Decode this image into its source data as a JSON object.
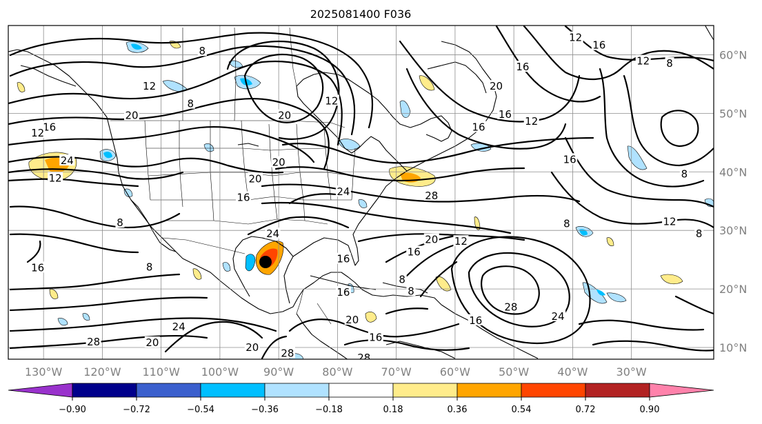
{
  "title": "2025081400 F036",
  "longitudes": [
    {
      "value": -130,
      "label": "130°W"
    },
    {
      "value": -120,
      "label": "120°W"
    },
    {
      "value": -110,
      "label": "110°W"
    },
    {
      "value": -100,
      "label": "100°W"
    },
    {
      "value": -90,
      "label": "90°W"
    },
    {
      "value": -80,
      "label": "80°W"
    },
    {
      "value": -70,
      "label": "70°W"
    },
    {
      "value": -60,
      "label": "60°W"
    },
    {
      "value": -50,
      "label": "50°W"
    },
    {
      "value": -40,
      "label": "40°W"
    },
    {
      "value": -30,
      "label": "30°W"
    }
  ],
  "latitudes": [
    {
      "value": 60,
      "label": "60°N"
    },
    {
      "value": 50,
      "label": "50°N"
    },
    {
      "value": 40,
      "label": "40°N"
    },
    {
      "value": 30,
      "label": "30°N"
    },
    {
      "value": 20,
      "label": "20°N"
    },
    {
      "value": 10,
      "label": "10°N"
    }
  ],
  "extent": {
    "lon_min": -136,
    "lon_max": -16,
    "lat_min": 8,
    "lat_max": 65
  },
  "colorbar": {
    "colors": [
      "#9932cc",
      "#00008b",
      "#3a5fcd",
      "#00bfff",
      "#b0e2ff",
      "#ffffff",
      "#ffec8b",
      "#ffa500",
      "#ff4500",
      "#b22222",
      "#ff82ab"
    ],
    "ticks": [
      "−0.90",
      "−0.72",
      "−0.54",
      "−0.36",
      "−0.18",
      "0.18",
      "0.36",
      "0.54",
      "0.72",
      "0.90"
    ]
  },
  "contour_labels": [
    {
      "text": "8",
      "lon": -103,
      "lat": 60.5
    },
    {
      "text": "12",
      "lon": -112,
      "lat": 54.5
    },
    {
      "text": "8",
      "lon": -105,
      "lat": 51.5
    },
    {
      "text": "20",
      "lon": -115,
      "lat": 49.5
    },
    {
      "text": "16",
      "lon": -129,
      "lat": 47.5
    },
    {
      "text": "12",
      "lon": -131,
      "lat": 46.5
    },
    {
      "text": "24",
      "lon": -126,
      "lat": 41.8
    },
    {
      "text": "12",
      "lon": -128,
      "lat": 38.8
    },
    {
      "text": "20",
      "lon": -89,
      "lat": 49.5
    },
    {
      "text": "12",
      "lon": -81,
      "lat": 52
    },
    {
      "text": "20",
      "lon": -90,
      "lat": 41.5
    },
    {
      "text": "20",
      "lon": -94,
      "lat": 38.7
    },
    {
      "text": "16",
      "lon": -96,
      "lat": 35.5
    },
    {
      "text": "24",
      "lon": -79,
      "lat": 36.5
    },
    {
      "text": "28",
      "lon": -64,
      "lat": 35.8
    },
    {
      "text": "8",
      "lon": -117,
      "lat": 31.2
    },
    {
      "text": "16",
      "lon": -131,
      "lat": 23.5
    },
    {
      "text": "8",
      "lon": -112,
      "lat": 23.6
    },
    {
      "text": "24",
      "lon": -91,
      "lat": 29.3
    },
    {
      "text": "20",
      "lon": -64,
      "lat": 28.3
    },
    {
      "text": "12",
      "lon": -59,
      "lat": 28
    },
    {
      "text": "16",
      "lon": -67,
      "lat": 26.2
    },
    {
      "text": "16",
      "lon": -79,
      "lat": 25
    },
    {
      "text": "16",
      "lon": -79,
      "lat": 19.3
    },
    {
      "text": "8",
      "lon": -67.5,
      "lat": 19.5
    },
    {
      "text": "8",
      "lon": -69,
      "lat": 21.5
    },
    {
      "text": "28",
      "lon": -50.5,
      "lat": 16.8
    },
    {
      "text": "16",
      "lon": -56.5,
      "lat": 14.5
    },
    {
      "text": "24",
      "lon": -42.5,
      "lat": 15.2
    },
    {
      "text": "28",
      "lon": -121.5,
      "lat": 10.8
    },
    {
      "text": "20",
      "lon": -111.5,
      "lat": 10.7
    },
    {
      "text": "24",
      "lon": -107,
      "lat": 13.4
    },
    {
      "text": "20",
      "lon": -94.5,
      "lat": 9.9
    },
    {
      "text": "20",
      "lon": -77.5,
      "lat": 14.6
    },
    {
      "text": "16",
      "lon": -73.5,
      "lat": 11.6
    },
    {
      "text": "28",
      "lon": -88.5,
      "lat": 8.9
    },
    {
      "text": "28",
      "lon": -75.5,
      "lat": 8.1
    },
    {
      "text": "12",
      "lon": -47,
      "lat": 48.5
    },
    {
      "text": "16",
      "lon": -51.5,
      "lat": 49.7
    },
    {
      "text": "20",
      "lon": -53,
      "lat": 54.5
    },
    {
      "text": "16",
      "lon": -48.5,
      "lat": 57.8
    },
    {
      "text": "12",
      "lon": -39.5,
      "lat": 62.8
    },
    {
      "text": "16",
      "lon": -35.5,
      "lat": 61.5
    },
    {
      "text": "12",
      "lon": -28,
      "lat": 58.8
    },
    {
      "text": "8",
      "lon": -23.5,
      "lat": 58.4
    },
    {
      "text": "16",
      "lon": -56,
      "lat": 47.5
    },
    {
      "text": "16",
      "lon": -40.5,
      "lat": 42
    },
    {
      "text": "8",
      "lon": -21,
      "lat": 39.5
    },
    {
      "text": "12",
      "lon": -23.5,
      "lat": 31.4
    },
    {
      "text": "8",
      "lon": -18.5,
      "lat": 29.3
    },
    {
      "text": "8",
      "lon": -41,
      "lat": 31
    }
  ]
}
